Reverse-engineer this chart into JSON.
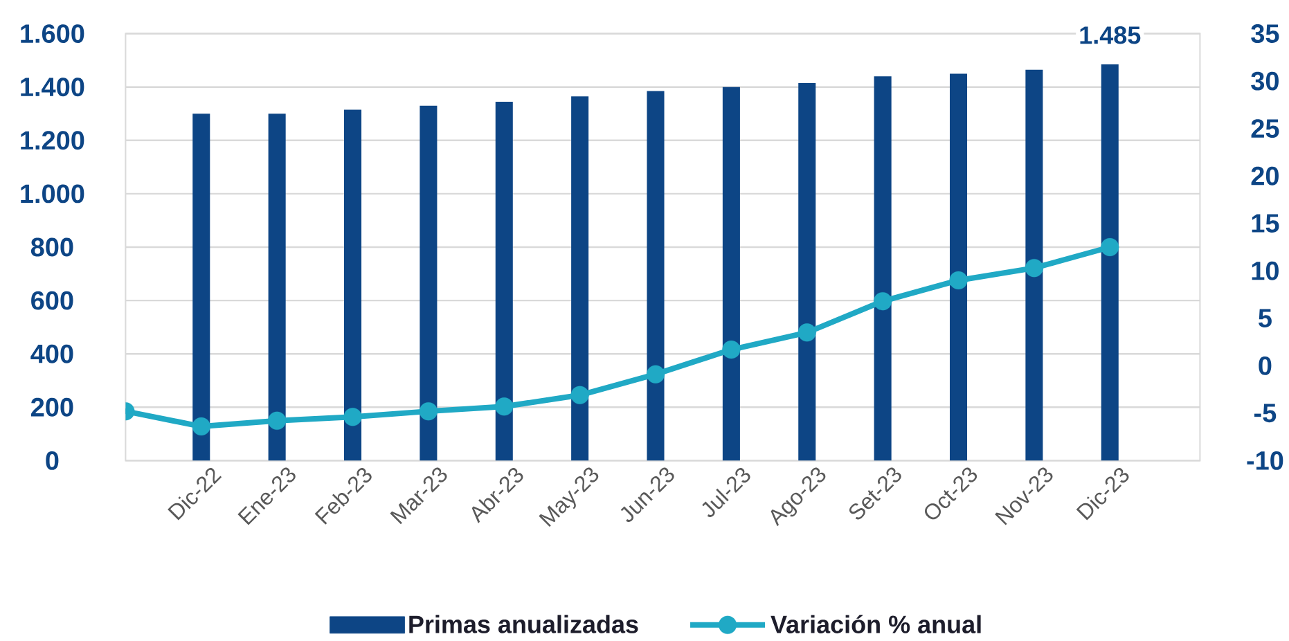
{
  "chart_data": {
    "type": "bar",
    "categories": [
      null,
      "Dic-22",
      "Ene-23",
      "Feb-23",
      "Mar-23",
      "Abr-23",
      "May-23",
      "Jun-23",
      "Jul-23",
      "Ago-23",
      "Set-23",
      "Oct-23",
      "Nov-23",
      "Dic-23"
    ],
    "series": [
      {
        "name": "Primas anualizadas",
        "color": "#0d4585",
        "values": [
          null,
          1300,
          1300,
          1315,
          1330,
          1345,
          1365,
          1385,
          1400,
          1415,
          1440,
          1450,
          1465,
          1485
        ],
        "value_labels": [
          null,
          null,
          null,
          null,
          null,
          null,
          null,
          null,
          null,
          null,
          null,
          null,
          null,
          "1.485"
        ]
      },
      {
        "name": "Variación % anual",
        "type": "line",
        "axis": "y2",
        "marker": "circle",
        "color": "#20a9c5",
        "values": [
          -4.8,
          -6.4,
          -5.8,
          -5.4,
          -4.8,
          -4.3,
          -3.1,
          -0.9,
          1.7,
          3.5,
          6.8,
          9.0,
          10.3,
          12.5
        ]
      }
    ],
    "ylim": [
      0,
      1600
    ],
    "yticks": [
      0,
      200,
      400,
      600,
      800,
      {
        "value": 1000,
        "label": "1.000"
      },
      {
        "value": 1200,
        "label": "1.200"
      },
      {
        "value": 1400,
        "label": "1.400"
      },
      {
        "value": 1600,
        "label": "1.600"
      }
    ],
    "y2lim": [
      -10,
      35
    ],
    "y2ticks": [
      -10,
      -5,
      0,
      5,
      10,
      15,
      20,
      25,
      30,
      35
    ],
    "grid": "y",
    "legend": "bottom"
  }
}
